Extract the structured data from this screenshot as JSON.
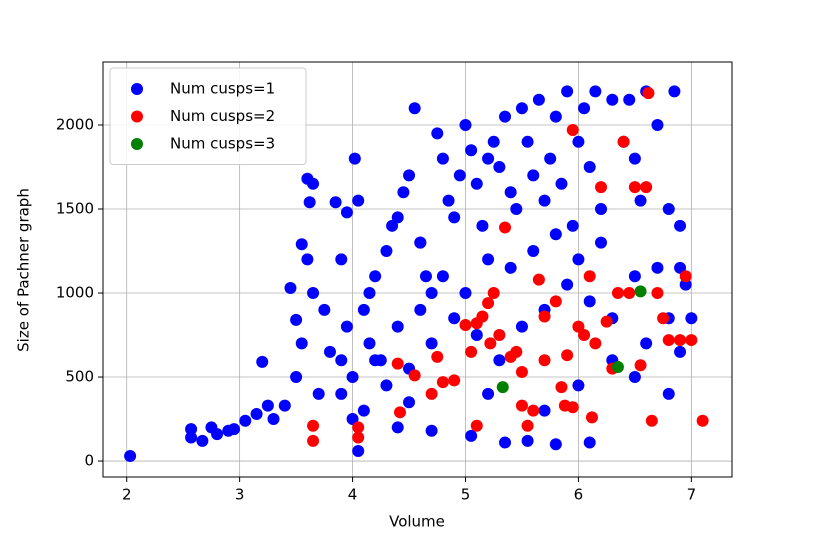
{
  "chart_data": {
    "type": "scatter",
    "xlabel": "Volume",
    "ylabel": "Size of Pachner graph",
    "xlim": [
      1.79,
      7.36
    ],
    "ylim": [
      -95,
      2375
    ],
    "xticks": [
      2,
      3,
      4,
      5,
      6,
      7
    ],
    "yticks": [
      0,
      500,
      1000,
      1500,
      2000
    ],
    "grid": true,
    "legend_loc": "upper left",
    "series": [
      {
        "name": "Num cusps=1",
        "color": "#0000ff",
        "x": [
          2.03,
          2.57,
          2.57,
          2.67,
          2.75,
          2.8,
          2.9,
          2.95,
          3.05,
          3.15,
          3.2,
          3.25,
          3.3,
          3.4,
          3.45,
          3.5,
          3.55,
          3.6,
          3.62,
          3.65,
          3.6,
          3.65,
          3.55,
          3.5,
          3.7,
          3.75,
          3.8,
          3.85,
          3.9,
          3.95,
          3.95,
          4.0,
          4.02,
          4.05,
          4.05,
          4.1,
          4.15,
          4.2,
          4.25,
          4.3,
          4.35,
          4.4,
          4.45,
          4.5,
          4.55,
          4.6,
          4.65,
          4.7,
          4.75,
          4.8,
          4.85,
          4.9,
          4.95,
          5.0,
          5.05,
          5.1,
          5.15,
          5.2,
          5.25,
          5.3,
          5.35,
          5.4,
          5.45,
          5.5,
          5.55,
          5.6,
          5.65,
          5.7,
          5.75,
          5.8,
          5.85,
          5.9,
          5.95,
          6.0,
          6.05,
          6.1,
          6.15,
          6.2,
          6.3,
          6.4,
          6.45,
          6.5,
          6.55,
          6.6,
          6.7,
          6.85,
          6.8,
          6.9,
          4.1,
          4.3,
          4.5,
          4.7,
          4.9,
          5.1,
          5.3,
          5.5,
          5.7,
          5.9,
          6.1,
          6.3,
          6.5,
          6.7,
          6.9,
          5.6,
          6.0,
          6.2,
          5.8,
          5.4,
          5.2,
          5.0,
          4.8,
          4.6,
          4.4,
          4.2,
          3.9,
          4.0,
          4.4,
          4.7,
          5.05,
          5.35,
          5.55,
          5.8,
          6.1,
          5.7,
          6.0,
          6.3,
          6.6,
          6.9,
          6.8,
          6.8,
          6.5,
          7.0,
          6.95,
          5.2,
          4.5,
          3.9,
          4.15,
          4.6
        ],
        "values": [
          30,
          190,
          140,
          120,
          200,
          160,
          180,
          190,
          240,
          280,
          590,
          330,
          250,
          330,
          1030,
          840,
          1290,
          1680,
          1540,
          1650,
          1200,
          1000,
          700,
          500,
          400,
          900,
          650,
          1540,
          1200,
          1480,
          800,
          500,
          1800,
          1550,
          60,
          900,
          700,
          1100,
          600,
          1250,
          1400,
          1450,
          1600,
          1700,
          2100,
          1300,
          1100,
          1000,
          1950,
          1800,
          1550,
          1450,
          1700,
          2000,
          1850,
          1650,
          1400,
          1800,
          1900,
          1750,
          2050,
          1600,
          1500,
          2100,
          1900,
          1700,
          2150,
          1550,
          1800,
          2050,
          1650,
          2200,
          1400,
          1900,
          2100,
          1750,
          2200,
          1500,
          2150,
          1900,
          2150,
          1800,
          1550,
          2200,
          2000,
          2200,
          1500,
          1400,
          300,
          450,
          550,
          700,
          850,
          750,
          600,
          800,
          900,
          1050,
          950,
          850,
          1100,
          1150,
          1150,
          1250,
          1200,
          1300,
          1350,
          1150,
          1200,
          1000,
          1100,
          900,
          800,
          600,
          400,
          250,
          200,
          180,
          150,
          110,
          120,
          100,
          110,
          300,
          450,
          600,
          700,
          650,
          850,
          400,
          500,
          850,
          1050,
          400,
          350,
          600,
          1000,
          1300
        ]
      },
      {
        "name": "Num cusps=2",
        "color": "#ff0000",
        "x": [
          3.65,
          3.65,
          4.05,
          4.05,
          4.4,
          4.42,
          4.55,
          4.7,
          4.75,
          4.8,
          4.9,
          5.0,
          5.05,
          5.1,
          5.1,
          5.15,
          5.2,
          5.22,
          5.25,
          5.3,
          5.35,
          5.4,
          5.45,
          5.5,
          5.5,
          5.6,
          5.65,
          5.7,
          5.7,
          5.8,
          5.85,
          5.88,
          5.9,
          5.95,
          6.0,
          6.05,
          6.1,
          6.15,
          6.2,
          6.25,
          6.3,
          6.35,
          6.4,
          6.45,
          6.5,
          6.55,
          6.6,
          6.62,
          6.65,
          6.7,
          6.75,
          6.8,
          6.9,
          6.95,
          7.1,
          7.0,
          5.95,
          5.55,
          6.12
        ],
        "values": [
          210,
          120,
          200,
          140,
          580,
          290,
          510,
          400,
          620,
          470,
          480,
          810,
          650,
          820,
          210,
          860,
          940,
          700,
          1000,
          750,
          1390,
          620,
          650,
          530,
          330,
          300,
          1080,
          600,
          860,
          950,
          440,
          330,
          630,
          1970,
          800,
          750,
          1100,
          700,
          1630,
          830,
          550,
          1000,
          1900,
          1000,
          1630,
          570,
          1630,
          2190,
          240,
          1000,
          850,
          720,
          720,
          1100,
          240,
          720,
          320,
          210,
          260
        ]
      },
      {
        "name": "Num cusps=3",
        "color": "#008000",
        "x": [
          5.33,
          6.35,
          6.55
        ],
        "values": [
          440,
          560,
          1010
        ]
      }
    ]
  }
}
